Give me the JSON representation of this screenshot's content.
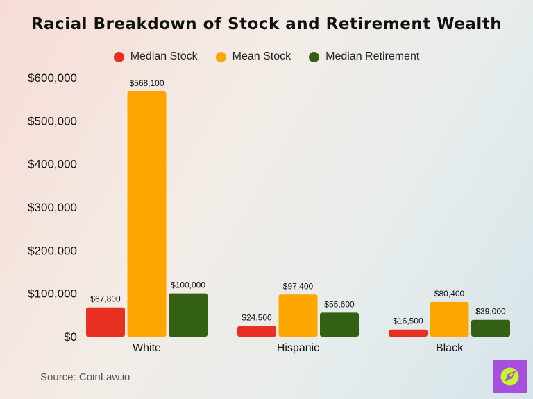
{
  "chart_data": {
    "type": "bar",
    "title": "Racial Breakdown of Stock and Retirement Wealth",
    "categories": [
      "White",
      "Hispanic",
      "Black"
    ],
    "series": [
      {
        "name": "Median Stock",
        "color": "#e83022",
        "values": [
          67800,
          24500,
          16500
        ],
        "labels": [
          "$67,800",
          "$24,500",
          "$16,500"
        ]
      },
      {
        "name": "Mean Stock",
        "color": "#ffa500",
        "values": [
          568100,
          97400,
          80400
        ],
        "labels": [
          "$568,100",
          "$97,400",
          "$80,400"
        ]
      },
      {
        "name": "Median Retirement",
        "color": "#336013",
        "values": [
          100000,
          55600,
          39000
        ],
        "labels": [
          "$100,000",
          "$55,600",
          "$39,000"
        ]
      }
    ],
    "ylim": [
      0,
      600000
    ],
    "yticks": [
      0,
      100000,
      200000,
      300000,
      400000,
      500000,
      600000
    ],
    "ytick_labels": [
      "$0",
      "$100,000",
      "$200,000",
      "$300,000",
      "$400,000",
      "$500,000",
      "$600,000"
    ],
    "grid": false,
    "legend_position": "top-center"
  },
  "source": "Source: CoinLaw.io",
  "logo": {
    "icon": "compass-icon",
    "background": "#a84fe0",
    "accent": "#c6f52a"
  }
}
